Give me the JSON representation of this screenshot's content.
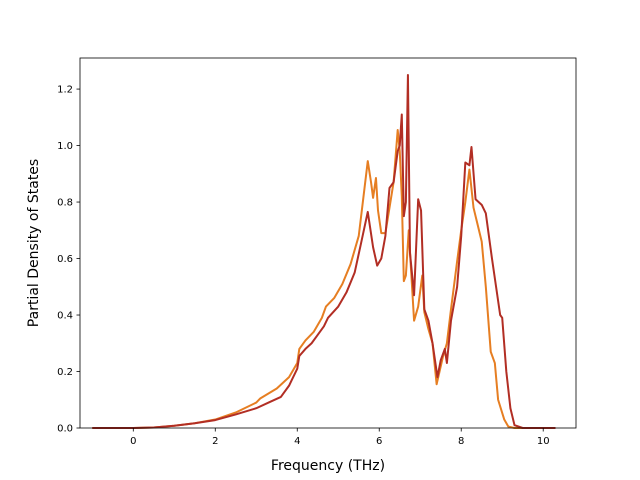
{
  "chart_data": {
    "type": "line",
    "title": "",
    "xlabel": "Frequency (THz)",
    "ylabel": "Partial Density of States",
    "xlim": [
      -1.3,
      10.8
    ],
    "ylim": [
      0.0,
      1.31
    ],
    "xticks": [
      0,
      2,
      4,
      6,
      8,
      10
    ],
    "yticks": [
      0.0,
      0.2,
      0.4,
      0.6,
      0.8,
      1.0,
      1.2
    ],
    "xtick_labels": [
      "0",
      "2",
      "4",
      "6",
      "8",
      "10"
    ],
    "ytick_labels": [
      "0.0",
      "0.2",
      "0.4",
      "0.6",
      "0.8",
      "1.0",
      "1.2"
    ],
    "grid": false,
    "legend": "none",
    "series": [
      {
        "color": "#e67e22",
        "points": [
          [
            -1.0,
            0.0
          ],
          [
            0.0,
            0.0
          ],
          [
            0.5,
            0.002
          ],
          [
            1.0,
            0.008
          ],
          [
            1.5,
            0.017
          ],
          [
            2.0,
            0.03
          ],
          [
            2.5,
            0.055
          ],
          [
            3.0,
            0.09
          ],
          [
            3.1,
            0.105
          ],
          [
            3.5,
            0.14
          ],
          [
            3.8,
            0.18
          ],
          [
            4.0,
            0.23
          ],
          [
            4.05,
            0.28
          ],
          [
            4.2,
            0.31
          ],
          [
            4.4,
            0.34
          ],
          [
            4.6,
            0.39
          ],
          [
            4.7,
            0.43
          ],
          [
            4.9,
            0.46
          ],
          [
            5.1,
            0.51
          ],
          [
            5.3,
            0.58
          ],
          [
            5.5,
            0.68
          ],
          [
            5.6,
            0.8
          ],
          [
            5.72,
            0.945
          ],
          [
            5.8,
            0.87
          ],
          [
            5.85,
            0.815
          ],
          [
            5.92,
            0.885
          ],
          [
            5.97,
            0.77
          ],
          [
            6.05,
            0.69
          ],
          [
            6.15,
            0.69
          ],
          [
            6.25,
            0.78
          ],
          [
            6.35,
            0.87
          ],
          [
            6.45,
            1.055
          ],
          [
            6.5,
            0.98
          ],
          [
            6.55,
            0.82
          ],
          [
            6.6,
            0.52
          ],
          [
            6.65,
            0.54
          ],
          [
            6.72,
            0.7
          ],
          [
            6.78,
            0.55
          ],
          [
            6.85,
            0.38
          ],
          [
            6.95,
            0.43
          ],
          [
            7.05,
            0.54
          ],
          [
            7.1,
            0.41
          ],
          [
            7.2,
            0.35
          ],
          [
            7.3,
            0.3
          ],
          [
            7.4,
            0.155
          ],
          [
            7.55,
            0.25
          ],
          [
            7.65,
            0.3
          ],
          [
            7.75,
            0.42
          ],
          [
            7.9,
            0.59
          ],
          [
            8.0,
            0.7
          ],
          [
            8.1,
            0.8
          ],
          [
            8.2,
            0.915
          ],
          [
            8.3,
            0.78
          ],
          [
            8.4,
            0.72
          ],
          [
            8.5,
            0.66
          ],
          [
            8.6,
            0.5
          ],
          [
            8.72,
            0.27
          ],
          [
            8.82,
            0.23
          ],
          [
            8.9,
            0.1
          ],
          [
            9.05,
            0.03
          ],
          [
            9.15,
            0.005
          ],
          [
            9.3,
            0.0
          ],
          [
            10.3,
            0.0
          ]
        ]
      },
      {
        "color": "#b22e24",
        "points": [
          [
            -1.0,
            0.0
          ],
          [
            0.0,
            0.0
          ],
          [
            0.5,
            0.002
          ],
          [
            1.0,
            0.008
          ],
          [
            1.5,
            0.017
          ],
          [
            2.0,
            0.028
          ],
          [
            2.5,
            0.048
          ],
          [
            3.0,
            0.07
          ],
          [
            3.3,
            0.09
          ],
          [
            3.6,
            0.11
          ],
          [
            3.8,
            0.15
          ],
          [
            4.0,
            0.21
          ],
          [
            4.05,
            0.255
          ],
          [
            4.2,
            0.28
          ],
          [
            4.35,
            0.3
          ],
          [
            4.5,
            0.33
          ],
          [
            4.65,
            0.36
          ],
          [
            4.75,
            0.39
          ],
          [
            5.0,
            0.43
          ],
          [
            5.2,
            0.48
          ],
          [
            5.4,
            0.55
          ],
          [
            5.55,
            0.65
          ],
          [
            5.72,
            0.765
          ],
          [
            5.85,
            0.64
          ],
          [
            5.95,
            0.575
          ],
          [
            6.05,
            0.6
          ],
          [
            6.15,
            0.68
          ],
          [
            6.25,
            0.85
          ],
          [
            6.35,
            0.87
          ],
          [
            6.45,
            0.98
          ],
          [
            6.5,
            1.0
          ],
          [
            6.55,
            1.11
          ],
          [
            6.6,
            0.75
          ],
          [
            6.65,
            0.8
          ],
          [
            6.7,
            1.25
          ],
          [
            6.75,
            0.62
          ],
          [
            6.85,
            0.47
          ],
          [
            6.95,
            0.81
          ],
          [
            7.02,
            0.77
          ],
          [
            7.1,
            0.42
          ],
          [
            7.2,
            0.38
          ],
          [
            7.3,
            0.3
          ],
          [
            7.42,
            0.18
          ],
          [
            7.5,
            0.24
          ],
          [
            7.6,
            0.28
          ],
          [
            7.65,
            0.23
          ],
          [
            7.75,
            0.38
          ],
          [
            7.9,
            0.5
          ],
          [
            8.0,
            0.68
          ],
          [
            8.1,
            0.94
          ],
          [
            8.2,
            0.93
          ],
          [
            8.25,
            0.995
          ],
          [
            8.35,
            0.81
          ],
          [
            8.5,
            0.79
          ],
          [
            8.6,
            0.76
          ],
          [
            8.75,
            0.6
          ],
          [
            8.85,
            0.5
          ],
          [
            8.95,
            0.4
          ],
          [
            9.0,
            0.39
          ],
          [
            9.1,
            0.2
          ],
          [
            9.2,
            0.07
          ],
          [
            9.3,
            0.01
          ],
          [
            9.5,
            0.0
          ],
          [
            10.3,
            0.0
          ]
        ]
      }
    ]
  }
}
